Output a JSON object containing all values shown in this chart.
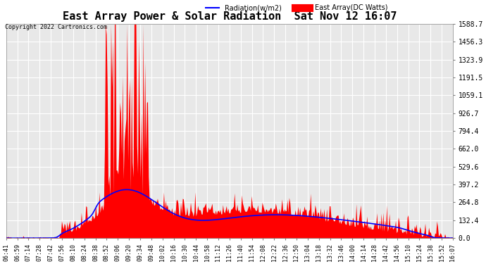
{
  "title": "East Array Power & Solar Radiation  Sat Nov 12 16:07",
  "copyright": "Copyright 2022 Cartronics.com",
  "legend_radiation": "Radiation(w/m2)",
  "legend_east": "East Array(DC Watts)",
  "legend_radiation_color": "blue",
  "legend_east_color": "red",
  "yticks": [
    0.0,
    132.4,
    264.8,
    397.2,
    529.6,
    662.0,
    794.4,
    926.7,
    1059.1,
    1191.5,
    1323.9,
    1456.3,
    1588.7
  ],
  "ymax": 1588.7,
  "ymin": 0.0,
  "background_color": "#ffffff",
  "plot_bg_color": "#e8e8e8",
  "grid_color": "#ffffff",
  "fill_color_east": "#ff0000",
  "line_color_radiation": "blue",
  "xtick_labels": [
    "06:41",
    "06:59",
    "07:14",
    "07:28",
    "07:42",
    "07:56",
    "08:10",
    "08:24",
    "08:38",
    "08:52",
    "09:06",
    "09:20",
    "09:34",
    "09:48",
    "10:02",
    "10:16",
    "10:30",
    "10:44",
    "10:58",
    "11:12",
    "11:26",
    "11:40",
    "11:54",
    "12:08",
    "12:22",
    "12:36",
    "12:50",
    "13:04",
    "13:18",
    "13:32",
    "13:46",
    "14:00",
    "14:14",
    "14:28",
    "14:42",
    "14:56",
    "15:10",
    "15:24",
    "15:38",
    "15:52",
    "16:07"
  ],
  "num_points": 500
}
